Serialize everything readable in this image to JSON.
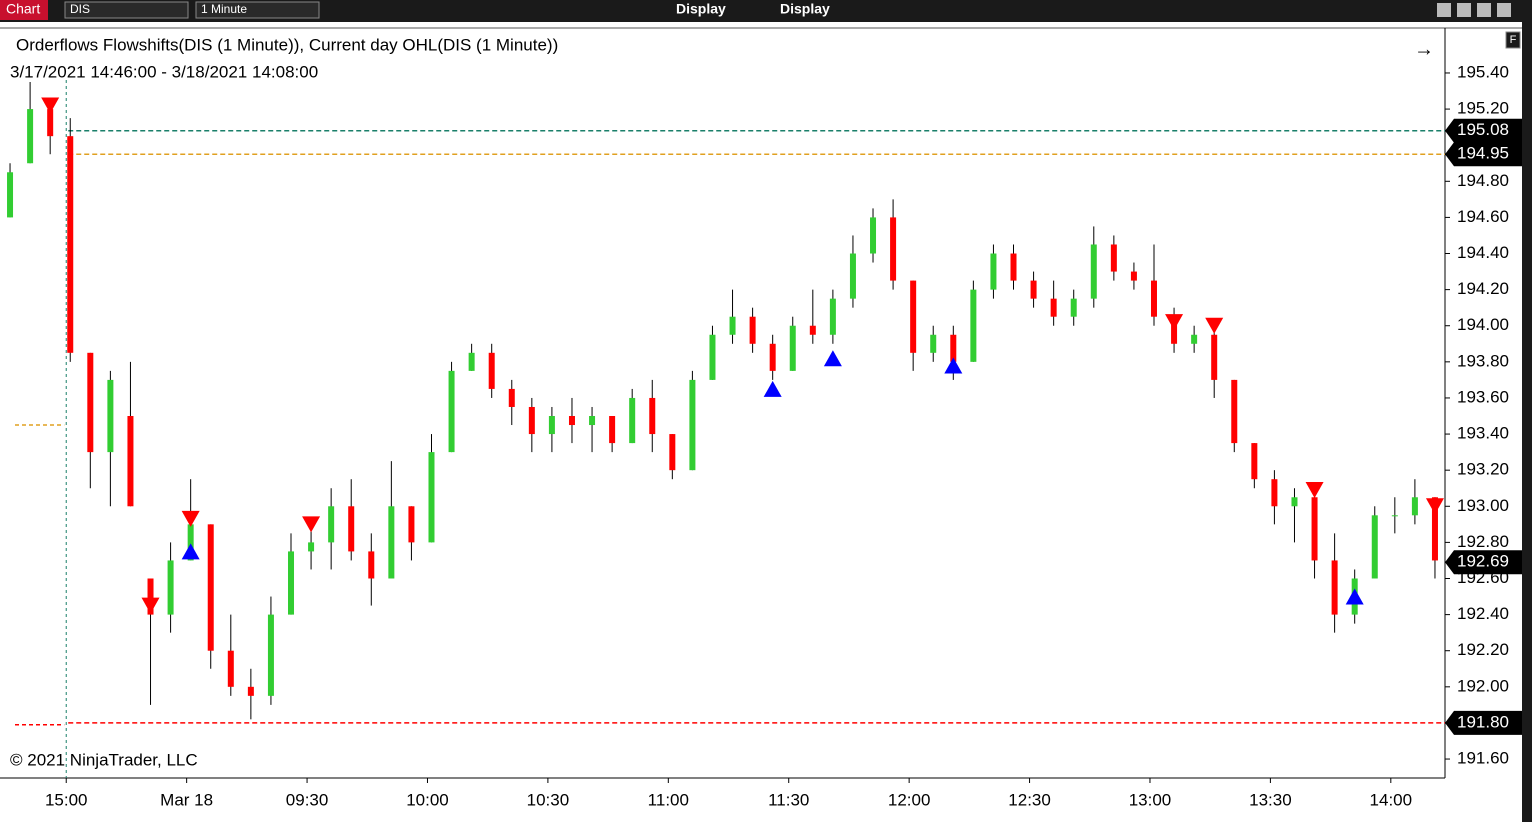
{
  "toolbar": {
    "tab": "Chart",
    "symbol": "DIS",
    "interval": "1 Minute",
    "menu": [
      "Display",
      "Display"
    ],
    "panel_button": "F"
  },
  "chart_data": {
    "type": "candlestick",
    "title": "Orderflows Flowshifts(DIS (1 Minute)), Current day OHL(DIS (1 Minute))",
    "subtitle": "3/17/2021 14:46:00 - 3/18/2021 14:08:00",
    "annotation": "© 2021 NinjaTrader, LLC",
    "up_color": "#32cd32",
    "down_color": "#ff0000",
    "open": [
      194.6,
      194.9,
      195.2,
      195.05,
      193.85,
      193.3,
      193.5,
      192.6,
      192.4,
      192.7,
      192.9,
      192.2,
      192.0,
      191.95,
      192.4,
      192.75,
      192.8,
      193.0,
      192.75,
      192.6,
      193.0,
      192.8,
      193.3,
      193.75,
      193.85,
      193.65,
      193.55,
      193.4,
      193.5,
      193.45,
      193.5,
      193.35,
      193.6,
      193.4,
      193.2,
      193.7,
      193.95,
      194.05,
      193.9,
      193.75,
      194.0,
      193.95,
      194.15,
      194.4,
      194.6,
      194.25,
      193.85,
      193.95,
      193.8,
      194.2,
      194.4,
      194.25,
      194.15,
      194.05,
      194.15,
      194.45,
      194.3,
      194.25,
      194.05,
      193.9,
      193.95,
      193.7,
      193.35,
      193.15,
      193.0,
      193.05,
      192.7,
      192.4,
      192.6,
      192.95,
      192.95,
      193.05
    ],
    "high": [
      194.9,
      195.35,
      195.25,
      195.15,
      193.85,
      193.75,
      193.8,
      192.6,
      192.8,
      193.15,
      192.9,
      192.4,
      192.1,
      192.5,
      192.85,
      192.9,
      193.1,
      193.15,
      192.85,
      193.25,
      193.0,
      193.4,
      193.8,
      193.9,
      193.9,
      193.7,
      193.6,
      193.55,
      193.6,
      193.55,
      193.5,
      193.65,
      193.7,
      193.4,
      193.75,
      194.0,
      194.2,
      194.1,
      193.95,
      194.05,
      194.2,
      194.2,
      194.5,
      194.65,
      194.7,
      194.25,
      194.0,
      194.0,
      194.25,
      194.45,
      194.45,
      194.3,
      194.25,
      194.2,
      194.55,
      194.5,
      194.35,
      194.45,
      194.1,
      194.0,
      194.0,
      193.7,
      193.35,
      193.2,
      193.1,
      193.1,
      192.85,
      192.65,
      193.0,
      193.05,
      193.15,
      193.05
    ],
    "low": [
      194.6,
      194.9,
      194.95,
      193.8,
      193.1,
      193.0,
      193.0,
      191.9,
      192.3,
      192.7,
      192.1,
      191.95,
      191.82,
      191.9,
      192.4,
      192.65,
      192.65,
      192.7,
      192.45,
      192.6,
      192.7,
      192.8,
      193.3,
      193.75,
      193.6,
      193.45,
      193.3,
      193.3,
      193.35,
      193.3,
      193.3,
      193.35,
      193.3,
      193.15,
      193.2,
      193.7,
      193.9,
      193.85,
      193.7,
      193.75,
      193.9,
      193.9,
      194.1,
      194.35,
      194.2,
      193.75,
      193.8,
      193.7,
      193.8,
      194.15,
      194.2,
      194.1,
      194.0,
      194.0,
      194.1,
      194.25,
      194.2,
      194.0,
      193.85,
      193.85,
      193.6,
      193.3,
      193.1,
      192.9,
      192.8,
      192.6,
      192.3,
      192.35,
      192.6,
      192.85,
      192.9,
      192.6
    ],
    "close": [
      194.85,
      195.2,
      195.05,
      193.85,
      193.3,
      193.7,
      193.0,
      192.4,
      192.7,
      192.9,
      192.2,
      192.0,
      191.95,
      192.4,
      192.75,
      192.8,
      193.0,
      192.75,
      192.6,
      193.0,
      192.8,
      193.3,
      193.75,
      193.85,
      193.65,
      193.55,
      193.4,
      193.5,
      193.45,
      193.5,
      193.35,
      193.6,
      193.4,
      193.2,
      193.7,
      193.95,
      194.05,
      193.9,
      193.75,
      194.0,
      193.95,
      194.15,
      194.4,
      194.6,
      194.25,
      193.85,
      193.95,
      193.8,
      194.2,
      194.4,
      194.25,
      194.15,
      194.05,
      194.15,
      194.45,
      194.3,
      194.25,
      194.05,
      193.9,
      193.95,
      193.7,
      193.35,
      193.15,
      193.0,
      193.05,
      192.7,
      192.4,
      192.6,
      192.95,
      192.95,
      193.05,
      192.7
    ],
    "signals_down": {
      "color": "#ff0000",
      "x": [
        2,
        7,
        9,
        15,
        58,
        60,
        65,
        71
      ],
      "values": [
        195.22,
        192.45,
        192.93,
        192.9,
        194.02,
        194.0,
        193.09,
        193.0
      ]
    },
    "signals_up": {
      "color": "#0000ff",
      "x": [
        9,
        38,
        41,
        47,
        67
      ],
      "values": [
        192.75,
        193.65,
        193.82,
        193.78,
        192.5
      ]
    },
    "levels": {
      "values": [
        195.08,
        194.95,
        191.8
      ],
      "value_labels": [
        "195.08",
        "194.95",
        "191.80"
      ],
      "colors": [
        "#1a7f6a",
        "#e0a020",
        "#ff0000"
      ]
    },
    "prior_levels": {
      "values": [
        193.45,
        191.79
      ],
      "colors": [
        "#e0a020",
        "#ff0000"
      ]
    },
    "last_price": {
      "value": 192.69,
      "label": "192.69"
    },
    "xlim": [
      0,
      72
    ],
    "xticks": [
      {
        "value": 3.3,
        "label": "15:00"
      },
      {
        "value": 9.3,
        "label": "Mar 18"
      },
      {
        "value": 15.3,
        "label": "09:30"
      },
      {
        "value": 21.3,
        "label": "10:00"
      },
      {
        "value": 27.3,
        "label": "10:30"
      },
      {
        "value": 33.3,
        "label": "11:00"
      },
      {
        "value": 39.3,
        "label": "11:30"
      },
      {
        "value": 45.3,
        "label": "12:00"
      },
      {
        "value": 51.3,
        "label": "12:30"
      },
      {
        "value": 57.3,
        "label": "13:00"
      },
      {
        "value": 63.3,
        "label": "13:30"
      },
      {
        "value": 69.3,
        "label": "14:00"
      }
    ],
    "ylim": [
      191.495,
      195.638
    ],
    "yticks": [
      {
        "value": 191.6,
        "label": "191.60"
      },
      {
        "value": 191.8,
        "label": "191.80"
      },
      {
        "value": 192.0,
        "label": "192.00"
      },
      {
        "value": 192.2,
        "label": "192.20"
      },
      {
        "value": 192.4,
        "label": "192.40"
      },
      {
        "value": 192.6,
        "label": "192.60"
      },
      {
        "value": 192.8,
        "label": "192.80"
      },
      {
        "value": 193.0,
        "label": "193.00"
      },
      {
        "value": 193.2,
        "label": "193.20"
      },
      {
        "value": 193.4,
        "label": "193.40"
      },
      {
        "value": 193.6,
        "label": "193.60"
      },
      {
        "value": 193.8,
        "label": "193.80"
      },
      {
        "value": 194.0,
        "label": "194.00"
      },
      {
        "value": 194.2,
        "label": "194.20"
      },
      {
        "value": 194.4,
        "label": "194.40"
      },
      {
        "value": 194.6,
        "label": "194.60"
      },
      {
        "value": 194.8,
        "label": "194.80"
      },
      {
        "value": 195.2,
        "label": "195.20"
      },
      {
        "value": 195.4,
        "label": "195.40"
      }
    ]
  }
}
